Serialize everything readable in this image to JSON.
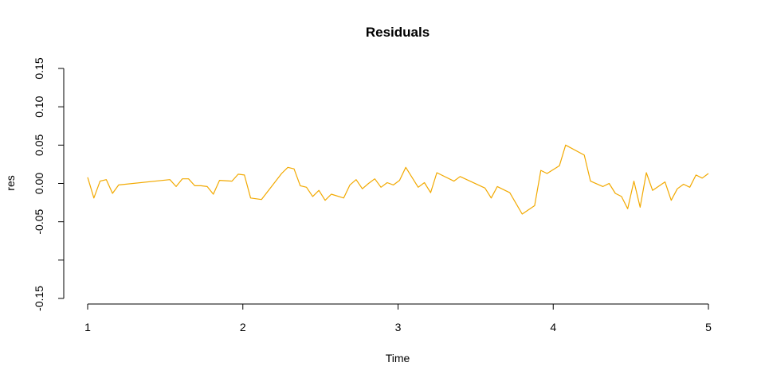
{
  "chart_data": {
    "type": "line",
    "title": "Residuals",
    "xlabel": "Time",
    "ylabel": "res",
    "xlim": [
      1,
      5
    ],
    "ylim": [
      -0.15,
      0.15
    ],
    "grid": false,
    "x_ticks": [
      1,
      2,
      3,
      4,
      5
    ],
    "x_tick_labels": [
      "1",
      "2",
      "3",
      "4",
      "5"
    ],
    "y_ticks": [
      -0.15,
      -0.1,
      -0.05,
      0.0,
      0.05,
      0.1,
      0.15
    ],
    "y_tick_labels": [
      "-0.15",
      "",
      "-0.05",
      "0.00",
      "0.05",
      "0.10",
      "0.15"
    ],
    "series": [
      {
        "color": "#f2a900",
        "x": [
          1.0,
          1.04,
          1.08,
          1.12,
          1.16,
          1.2,
          1.53,
          1.57,
          1.61,
          1.65,
          1.69,
          1.73,
          1.77,
          1.81,
          1.85,
          1.93,
          1.97,
          2.01,
          2.05,
          2.12,
          2.25,
          2.29,
          2.33,
          2.37,
          2.41,
          2.45,
          2.49,
          2.53,
          2.57,
          2.65,
          2.69,
          2.73,
          2.77,
          2.81,
          2.85,
          2.89,
          2.93,
          2.97,
          3.01,
          3.05,
          3.09,
          3.13,
          3.17,
          3.21,
          3.25,
          3.36,
          3.4,
          3.56,
          3.6,
          3.64,
          3.72,
          3.8,
          3.88,
          3.92,
          3.96,
          4.04,
          4.08,
          4.2,
          4.24,
          4.32,
          4.36,
          4.4,
          4.44,
          4.48,
          4.52,
          4.56,
          4.6,
          4.64,
          4.72,
          4.76,
          4.8,
          4.84,
          4.88,
          4.92,
          4.96,
          5.0
        ],
        "values": [
          0.008,
          -0.019,
          0.003,
          0.005,
          -0.013,
          -0.002,
          0.005,
          -0.004,
          0.006,
          0.006,
          -0.003,
          -0.003,
          -0.004,
          -0.014,
          0.004,
          0.003,
          0.012,
          0.011,
          -0.019,
          -0.021,
          0.013,
          0.021,
          0.019,
          -0.003,
          -0.005,
          -0.017,
          -0.009,
          -0.022,
          -0.014,
          -0.019,
          -0.002,
          0.005,
          -0.007,
          0.0,
          0.006,
          -0.005,
          0.001,
          -0.002,
          0.004,
          0.021,
          0.008,
          -0.005,
          0.001,
          -0.012,
          0.014,
          0.003,
          0.009,
          -0.006,
          -0.019,
          -0.004,
          -0.012,
          -0.04,
          -0.029,
          0.017,
          0.013,
          0.023,
          0.05,
          0.037,
          0.003,
          -0.004,
          0.0,
          -0.013,
          -0.017,
          -0.033,
          0.003,
          -0.031,
          0.014,
          -0.009,
          0.002,
          -0.022,
          -0.007,
          -0.001,
          -0.005,
          0.011,
          0.007,
          0.013
        ]
      }
    ]
  }
}
